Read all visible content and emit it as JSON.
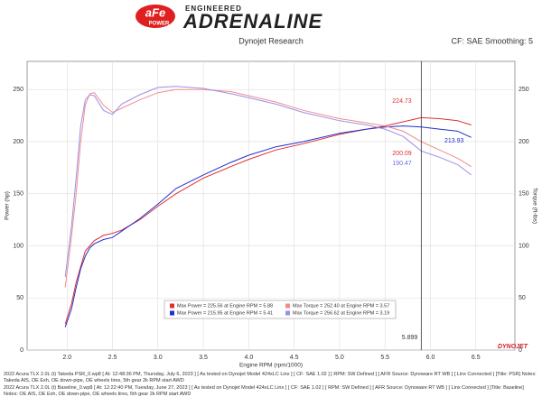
{
  "header": {
    "logo_brand": "aFe",
    "logo_sub": "POWER",
    "tagline": "ENGINEERED",
    "brand": "ADRENALINE",
    "center": "Dynojet Research",
    "right": "CF: SAE Smoothing: 5",
    "footer_logo": "DYNOJET"
  },
  "chart_data": {
    "type": "line",
    "x_label": "Engine RPM (rpm/1000)",
    "y_label": "Power (hp)",
    "y2_label": "Torque (ft-lbs)",
    "xlim": [
      1.56,
      6.93
    ],
    "ylim": [
      0,
      277
    ],
    "y2lim": [
      0,
      277
    ],
    "xticks": [
      {
        "value": 2,
        "label": "2.0"
      },
      2.5,
      {
        "value": 3,
        "label": "3.0"
      },
      3.5,
      {
        "value": 4,
        "label": "4.0"
      },
      4.5,
      {
        "value": 5,
        "label": "5.0"
      },
      5.5,
      {
        "value": 6,
        "label": "6.0"
      },
      6.5
    ],
    "yticks": [
      0,
      50,
      100,
      150,
      200,
      250
    ],
    "y2ticks": [
      0,
      50,
      100,
      150,
      200,
      250
    ],
    "grid": true,
    "series": [
      {
        "color": "#e03030",
        "x": [
          1.98,
          2.05,
          2.1,
          2.15,
          2.2,
          2.25,
          2.3,
          2.4,
          2.5,
          2.6,
          2.8,
          3.0,
          3.2,
          3.5,
          3.8,
          4.0,
          4.3,
          4.6,
          5.0,
          5.3,
          5.5,
          5.7,
          5.9,
          6.1,
          6.3,
          6.45
        ],
        "values": [
          25,
          45,
          65,
          80,
          95,
          100,
          105,
          110,
          112,
          115,
          125,
          138,
          150,
          165,
          176,
          183,
          192,
          198,
          207,
          212,
          215,
          219,
          223,
          222,
          220,
          216
        ]
      },
      {
        "color": "#2030d0",
        "x": [
          1.98,
          2.05,
          2.1,
          2.15,
          2.2,
          2.25,
          2.3,
          2.4,
          2.5,
          2.6,
          2.8,
          3.0,
          3.2,
          3.5,
          3.8,
          4.0,
          4.3,
          4.6,
          5.0,
          5.3,
          5.5,
          5.7,
          5.9,
          6.1,
          6.3,
          6.45
        ],
        "values": [
          22,
          40,
          60,
          78,
          90,
          98,
          102,
          106,
          108,
          114,
          126,
          140,
          155,
          168,
          180,
          187,
          195,
          200,
          208,
          212,
          214,
          215,
          214,
          212,
          210,
          204
        ]
      },
      {
        "color": "#f28c8c",
        "axis": "y2",
        "x": [
          1.98,
          2.05,
          2.1,
          2.15,
          2.2,
          2.25,
          2.3,
          2.4,
          2.5,
          2.6,
          2.8,
          3.0,
          3.2,
          3.5,
          3.8,
          4.0,
          4.3,
          4.6,
          5.0,
          5.3,
          5.5,
          5.7,
          5.9,
          6.1,
          6.3,
          6.45
        ],
        "values": [
          60,
          110,
          150,
          200,
          235,
          246,
          247,
          235,
          228,
          232,
          240,
          247,
          250,
          250,
          248,
          244,
          238,
          230,
          222,
          218,
          215,
          210,
          200,
          192,
          184,
          176
        ]
      },
      {
        "color": "#9b8fe8",
        "axis": "y2",
        "x": [
          1.98,
          2.05,
          2.1,
          2.15,
          2.2,
          2.25,
          2.3,
          2.4,
          2.5,
          2.6,
          2.8,
          3.0,
          3.2,
          3.5,
          3.8,
          4.0,
          4.3,
          4.6,
          5.0,
          5.3,
          5.5,
          5.7,
          5.9,
          6.1,
          6.3,
          6.45
        ],
        "values": [
          70,
          120,
          165,
          215,
          240,
          245,
          244,
          230,
          226,
          236,
          245,
          252,
          253,
          251,
          246,
          242,
          236,
          228,
          220,
          216,
          212,
          205,
          191,
          185,
          178,
          168
        ]
      }
    ],
    "annotations": [
      {
        "text": "224.73",
        "color": "#e03030"
      },
      {
        "text": "213.93",
        "color": "#2030d0"
      },
      {
        "text": "200.09",
        "color": "#e03030"
      },
      {
        "text": "190.47",
        "color": "#6a6ae0"
      }
    ],
    "cursor_x": 5.899,
    "legend": [
      {
        "text": "Max Power = 225.56 at Engine RPM = 5.88",
        "color": "#e03030"
      },
      {
        "text": "Max Torque = 252.40 at Engine RPM = 3.57",
        "color": "#f28c8c"
      },
      {
        "text": "Max Power = 215.95 at Engine RPM = 5.41",
        "color": "#2030d0"
      },
      {
        "text": "Max Torque = 256.62 at Engine RPM = 3.19",
        "color": "#9b8fe8"
      }
    ]
  },
  "footer": [
    "2022 Acura TLX 2.0L (t) Takeda PSR_0.wp8 [ At: 12:48:36 PM, Thursday, July 6, 2023 ] [ As tested on Dynojet Model 424xLC Linx ] [ CF: SAE 1.02 ] [ RPM: SW Defined ] [ AFR Source: Dynoware RT WB ] [ Linx Connected ] [Title: PSR] Notes: Takeda AIS, OE Exh, OE down-pipe, OE wheels tires, 5th gear 2k RPM start AWD",
    "2022 Acura TLX 2.0L (t) Baseline_0.wp8 [ At: 12:22:40 PM, Tuesday, June 27, 2023 ] [ As tested on Dynojet Model 424xLC Linx ] [ CF: SAE 1.02 ] [ RPM: SW Defined ] [ AFR Source: Dynoware RT WB ] [ Linx Connected ] [Title: Baseline] Notes: OE AIS, OE Exh, OE down-pipe, OE wheels tires, 5th gear 2k RPM start AWD"
  ]
}
